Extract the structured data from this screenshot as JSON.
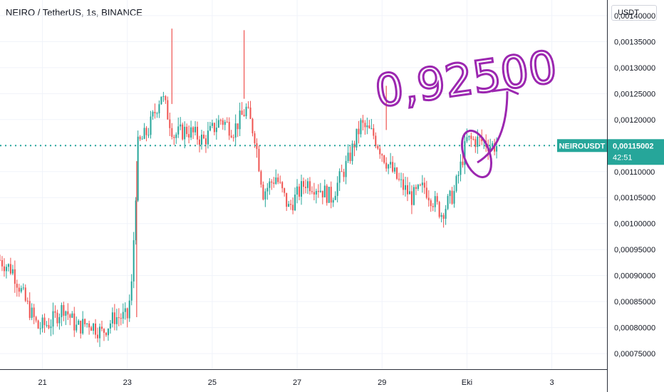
{
  "header": {
    "title": "NEIRO / TetherUS, 1s, BINANCE"
  },
  "price_scale": {
    "currency": "USDT"
  },
  "current_price": {
    "symbol": "NEIROUSDT",
    "price": "0,00115002",
    "countdown": "42:51"
  },
  "annotation": {
    "text": "0,92500"
  },
  "colors": {
    "up": "#26a69a",
    "down": "#ef5350",
    "price_line": "#26a69a",
    "annotation": "#9c27b0",
    "grid": "#f0f3fa",
    "axis_text": "#131722"
  },
  "chart_data": {
    "type": "candlestick",
    "ylim": [
      0.00072,
      0.00143
    ],
    "y_ticks": [
      "0,00075000",
      "0,00080000",
      "0,00085000",
      "0,00090000",
      "0,00095000",
      "0,00100000",
      "0,00105000",
      "0,00110000",
      "0,00115000",
      "0,00120000",
      "0,00125000",
      "0,00130000",
      "0,00135000",
      "0,00140000"
    ],
    "x_ticks": [
      "21",
      "23",
      "25",
      "27",
      "29",
      "Eki",
      "3"
    ],
    "x_tick_days": [
      21,
      23,
      25,
      27,
      29,
      31,
      33
    ],
    "xlim_days": [
      20,
      34.3
    ],
    "grid": true,
    "current_value": 0.00115002,
    "approximate_closes": [
      [
        20.0,
        0.00093
      ],
      [
        20.3,
        0.00091
      ],
      [
        20.6,
        0.00085
      ],
      [
        20.9,
        0.0008
      ],
      [
        21.2,
        0.00081
      ],
      [
        21.5,
        0.00084
      ],
      [
        21.8,
        0.0008
      ],
      [
        22.1,
        0.00081
      ],
      [
        22.4,
        0.00079
      ],
      [
        22.7,
        0.00082
      ],
      [
        23.0,
        0.00082
      ],
      [
        23.1,
        0.00088
      ],
      [
        23.25,
        0.00115
      ],
      [
        23.5,
        0.00118
      ],
      [
        23.8,
        0.00125
      ],
      [
        24.1,
        0.00117
      ],
      [
        24.4,
        0.00118
      ],
      [
        24.8,
        0.00116
      ],
      [
        25.2,
        0.0012
      ],
      [
        25.5,
        0.00118
      ],
      [
        25.8,
        0.00122
      ],
      [
        26.0,
        0.00117
      ],
      [
        26.2,
        0.00106
      ],
      [
        26.5,
        0.00109
      ],
      [
        26.8,
        0.00103
      ],
      [
        27.2,
        0.00108
      ],
      [
        27.5,
        0.00107
      ],
      [
        27.8,
        0.00105
      ],
      [
        28.2,
        0.00112
      ],
      [
        28.5,
        0.00119
      ],
      [
        28.8,
        0.00117
      ],
      [
        29.1,
        0.00112
      ],
      [
        29.4,
        0.00108
      ],
      [
        29.7,
        0.00105
      ],
      [
        30.0,
        0.00107
      ],
      [
        30.4,
        0.00102
      ],
      [
        30.7,
        0.00106
      ],
      [
        31.0,
        0.00116
      ],
      [
        31.3,
        0.00116
      ],
      [
        31.6,
        0.00115
      ],
      [
        31.75,
        0.00115
      ]
    ]
  }
}
